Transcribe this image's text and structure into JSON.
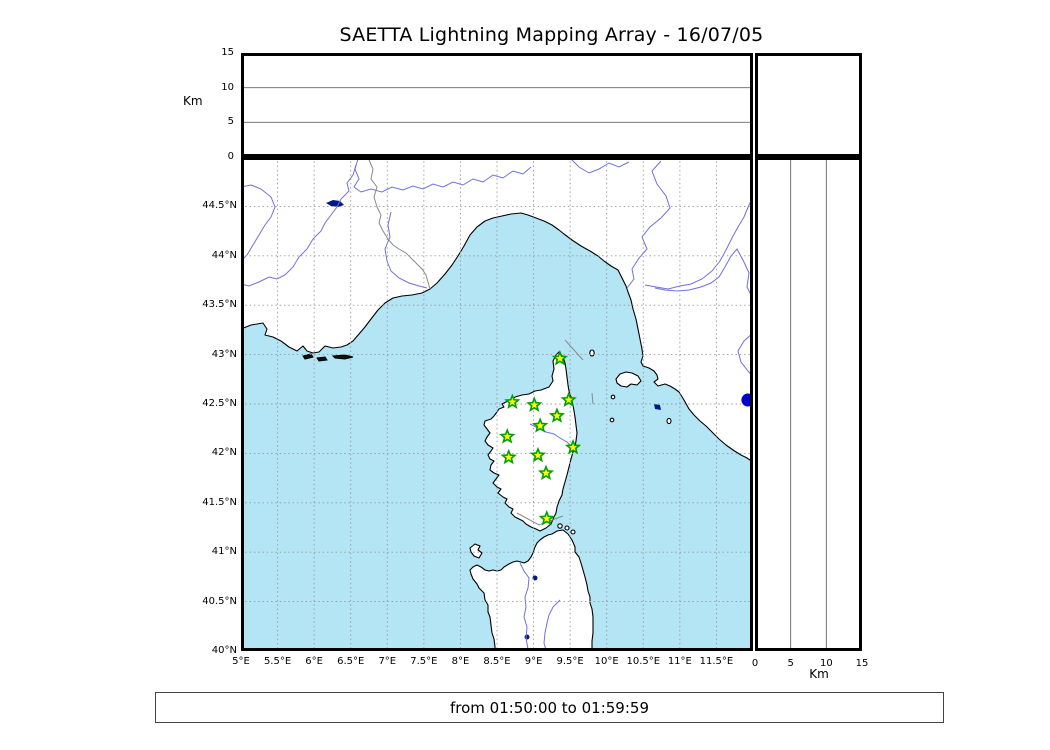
{
  "chart_data": {
    "type": "scatter",
    "title": "SAETTA Lightning Mapping Array - 16/07/05",
    "time_range": "from 01:50:00 to 01:59:59",
    "map_panel": {
      "xlim": [
        5,
        12
      ],
      "ylim": [
        40,
        45
      ],
      "grid": "dotted",
      "lon_ticks": [
        {
          "lon": 5,
          "label": "5°E"
        },
        {
          "lon": 5.5,
          "label": "5.5°E"
        },
        {
          "lon": 6,
          "label": "6°E"
        },
        {
          "lon": 6.5,
          "label": "6.5°E"
        },
        {
          "lon": 7,
          "label": "7°E"
        },
        {
          "lon": 7.5,
          "label": "7.5°E"
        },
        {
          "lon": 8,
          "label": "8°E"
        },
        {
          "lon": 8.5,
          "label": "8.5°E"
        },
        {
          "lon": 9,
          "label": "9°E"
        },
        {
          "lon": 9.5,
          "label": "9.5°E"
        },
        {
          "lon": 10,
          "label": "10°E"
        },
        {
          "lon": 10.5,
          "label": "10.5°E"
        },
        {
          "lon": 11,
          "label": "11°E"
        },
        {
          "lon": 11.5,
          "label": "11.5°E"
        }
      ],
      "lat_ticks": [
        {
          "lat": 44.5,
          "label": "44.5°N"
        },
        {
          "lat": 44,
          "label": "44°N"
        },
        {
          "lat": 43.5,
          "label": "43.5°N"
        },
        {
          "lat": 43,
          "label": "43°N"
        },
        {
          "lat": 42.5,
          "label": "42.5°N"
        },
        {
          "lat": 42,
          "label": "42°N"
        },
        {
          "lat": 41.5,
          "label": "41.5°N"
        },
        {
          "lat": 41,
          "label": "41°N"
        },
        {
          "lat": 40.5,
          "label": "40.5°N"
        },
        {
          "lat": 40,
          "label": "40°N"
        }
      ]
    },
    "altitude_panels": {
      "axis_label": "Km",
      "lim": [
        0,
        15
      ],
      "ticks": [
        {
          "km": 0,
          "label": "0"
        },
        {
          "km": 5,
          "label": "5"
        },
        {
          "km": 10,
          "label": "10"
        },
        {
          "km": 15,
          "label": "15"
        }
      ],
      "gridlines_km": [
        5,
        10
      ]
    },
    "stations": [
      {
        "lon": 9.36,
        "lat": 42.96
      },
      {
        "lon": 8.71,
        "lat": 42.52
      },
      {
        "lon": 9.01,
        "lat": 42.49
      },
      {
        "lon": 9.48,
        "lat": 42.54
      },
      {
        "lon": 9.32,
        "lat": 42.38
      },
      {
        "lon": 9.09,
        "lat": 42.28
      },
      {
        "lon": 8.64,
        "lat": 42.17
      },
      {
        "lon": 9.54,
        "lat": 42.06
      },
      {
        "lon": 9.06,
        "lat": 41.98
      },
      {
        "lon": 8.66,
        "lat": 41.96
      },
      {
        "lon": 9.17,
        "lat": 41.8
      },
      {
        "lon": 9.18,
        "lat": 41.34
      }
    ],
    "sources": [
      {
        "lon": 11.93,
        "lat": 42.54
      }
    ],
    "colors": {
      "sea": "#b3e5f4",
      "land": "#ffffff",
      "river": "#7070e0",
      "lake": "#001a80",
      "coast": "#000000",
      "border_line": "#8a8a8a",
      "grid": "#999999",
      "panel_grid": "#666666",
      "station_fill": "#ffff00",
      "station_edge": "#00a000",
      "source": "#0000cc"
    }
  }
}
